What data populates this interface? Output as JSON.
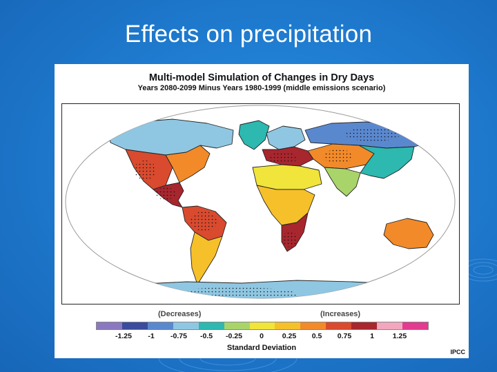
{
  "slide": {
    "title": "Effects on precipitation"
  },
  "figure": {
    "title": "Multi-model Simulation of Changes in Dry Days",
    "subtitle": "Years 2080-2099 Minus Years 1980-1999 (middle emissions scenario)",
    "source": "IPCC"
  },
  "legend": {
    "decreases_label": "(Decreases)",
    "increases_label": "(Increases)",
    "axis_label": "Standard Deviation",
    "ticks": [
      "-1.25",
      "-1",
      "-0.75",
      "-0.5",
      "-0.25",
      "0",
      "0.25",
      "0.5",
      "0.75",
      "1",
      "1.25"
    ],
    "tick_values": [
      -1.25,
      -1,
      -0.75,
      -0.5,
      -0.25,
      0,
      0.25,
      0.5,
      0.75,
      1,
      1.25
    ],
    "range": [
      -1.5,
      1.5
    ],
    "colors": [
      "#8a79c0",
      "#3b4b9e",
      "#5a88cf",
      "#8fc7e2",
      "#2db8b0",
      "#a9d46a",
      "#f1e43a",
      "#f6c02a",
      "#f28a2a",
      "#d94a2e",
      "#a8262e",
      "#f2a7bf",
      "#e23b8f"
    ]
  },
  "map": {
    "type": "global-choropleth",
    "projection": "robinson",
    "land_default_color": "#f6c02a",
    "regions": [
      {
        "name": "north-america-west",
        "color": "#d94a2e"
      },
      {
        "name": "north-america-east",
        "color": "#f28a2a"
      },
      {
        "name": "canada",
        "color": "#8fc7e2"
      },
      {
        "name": "greenland",
        "color": "#2db8b0"
      },
      {
        "name": "central-america",
        "color": "#a8262e"
      },
      {
        "name": "south-america-amazon",
        "color": "#d94a2e"
      },
      {
        "name": "south-america-south",
        "color": "#f6c02a"
      },
      {
        "name": "europe-north",
        "color": "#8fc7e2"
      },
      {
        "name": "mediterranean",
        "color": "#a8262e"
      },
      {
        "name": "sahara",
        "color": "#f1e43a"
      },
      {
        "name": "africa-central",
        "color": "#f6c02a"
      },
      {
        "name": "africa-south",
        "color": "#a8262e"
      },
      {
        "name": "siberia",
        "color": "#5a88cf"
      },
      {
        "name": "central-asia",
        "color": "#f28a2a"
      },
      {
        "name": "south-asia",
        "color": "#a9d46a"
      },
      {
        "name": "east-asia",
        "color": "#2db8b0"
      },
      {
        "name": "australia",
        "color": "#f28a2a"
      },
      {
        "name": "antarctica",
        "color": "#8fc7e2"
      }
    ]
  }
}
